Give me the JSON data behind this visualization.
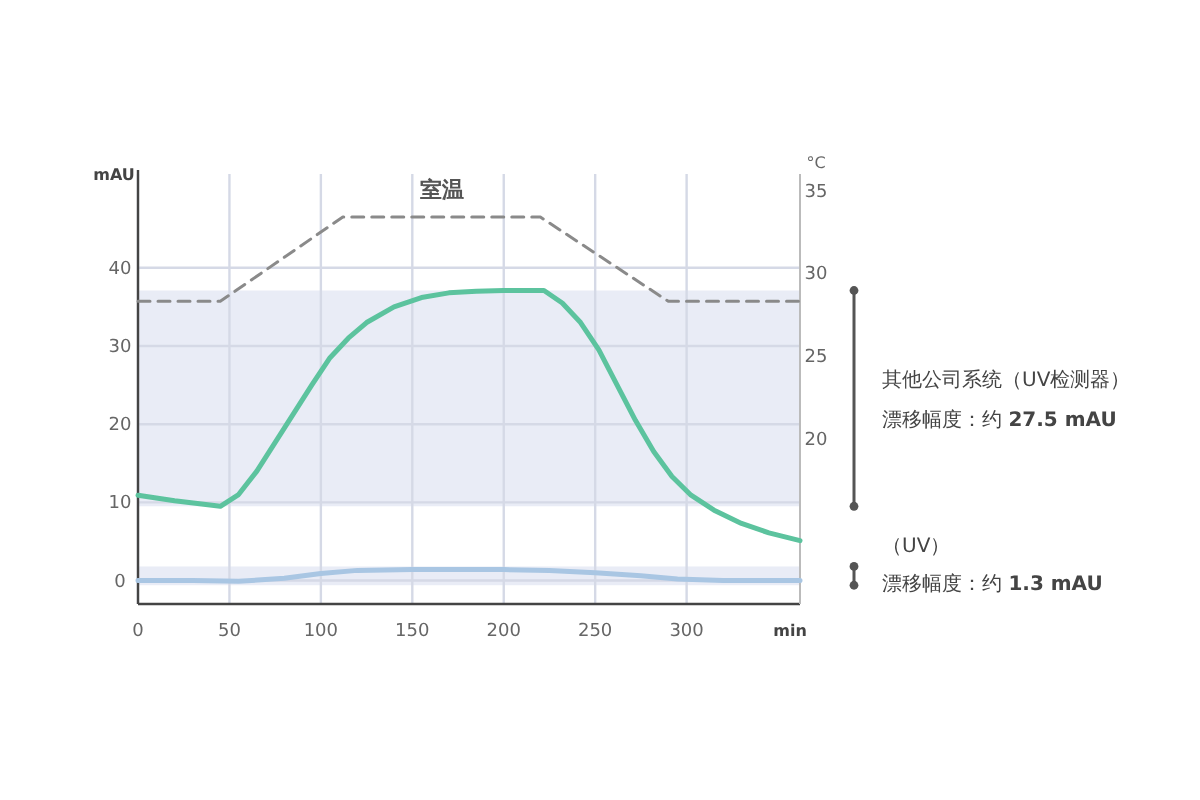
{
  "chart_data": {
    "type": "line",
    "xlabel": "min",
    "ylabel": "mAU",
    "y2label": "°C",
    "xlim": [
      0,
      362
    ],
    "ylim": [
      -3,
      52
    ],
    "y2lim": [
      10,
      36
    ],
    "xticks": [
      0,
      50,
      100,
      150,
      200,
      250,
      300
    ],
    "yticks": [
      0,
      10,
      20,
      30,
      40
    ],
    "y2ticks": [
      20,
      25,
      30,
      35
    ],
    "grid": true,
    "series": [
      {
        "color": "#5cc39e",
        "x": [
          0,
          20,
          45,
          55,
          65,
          80,
          95,
          105,
          115,
          125,
          140,
          155,
          170,
          185,
          200,
          222,
          232,
          242,
          252,
          262,
          272,
          282,
          292,
          302,
          315,
          330,
          345,
          362
        ],
        "values": [
          10.9,
          10.2,
          9.5,
          11,
          14,
          19.5,
          25,
          28.5,
          31,
          33,
          35,
          36.2,
          36.8,
          37,
          37.1,
          37.1,
          35.5,
          33,
          29.5,
          25,
          20.5,
          16.5,
          13.3,
          11,
          9,
          7.3,
          6.1,
          5.1
        ]
      },
      {
        "color": "#a9c6e3",
        "x": [
          0,
          30,
          55,
          80,
          100,
          120,
          150,
          200,
          225,
          250,
          275,
          295,
          320,
          362
        ],
        "values": [
          0,
          0,
          -0.1,
          0.3,
          0.9,
          1.3,
          1.4,
          1.4,
          1.3,
          1,
          0.6,
          0.2,
          0,
          0
        ]
      },
      {
        "name": "室温",
        "color": "#8a8a8a",
        "axis": "y2",
        "line_style": "dashed",
        "x": [
          0,
          45,
          112,
          220,
          290,
          362
        ],
        "values": [
          28.3,
          28.3,
          33.4,
          33.4,
          28.3,
          28.3
        ]
      }
    ],
    "bands": [
      {
        "axis": "y",
        "from": 9.5,
        "to": 37.1,
        "color": "#e9ecf6"
      },
      {
        "axis": "y",
        "from": -0.6,
        "to": 1.8,
        "color": "#e9ecf6"
      }
    ],
    "annotations": [
      "其他公司系统（UV检测器）",
      "漂移幅度：约 **27.5 mAU**",
      "（UV）",
      "漂移幅度：约 **1.3 mAU**"
    ]
  }
}
